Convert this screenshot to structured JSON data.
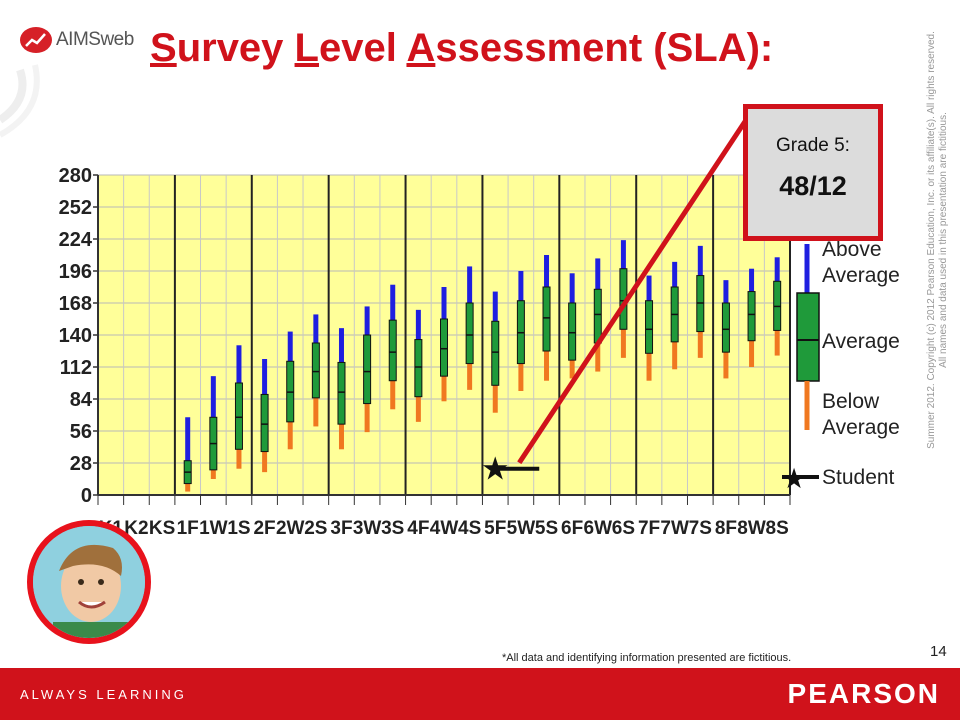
{
  "header": {
    "logo_text": "AIMSweb",
    "title_parts": [
      "S",
      "urvey ",
      "L",
      "evel ",
      "A",
      "ssessment (SLA):"
    ]
  },
  "callout": {
    "label": "Grade 5:",
    "value": "48/12"
  },
  "legend": {
    "above": "Above Average",
    "average": "Average",
    "below": "Below Average",
    "student": "Student"
  },
  "footer": {
    "note": "*All data and identifying information presented are fictitious.",
    "page_number": "14",
    "brand_left": "ALWAYS LEARNING",
    "brand_right": "PEARSON",
    "copyright_line1": "Summer 2012.  Copyright (c) 2012 Pearson Education, Inc. or its affiliate(s).  All rights reserved.",
    "copyright_line2": "All names and data used in this presentation  are fictitious."
  },
  "colors": {
    "accent": "#d0121b",
    "above": "#1f1fe0",
    "average": "#1f9a3a",
    "below": "#f07820",
    "plot_bg": "#ffff99"
  },
  "chart_data": {
    "type": "box",
    "categories": [
      "K1",
      "K2",
      "KS",
      "1F",
      "1W",
      "1S",
      "2F",
      "2W",
      "2S",
      "3F",
      "3W",
      "3S",
      "4F",
      "4W",
      "4S",
      "5F",
      "5W",
      "5S",
      "6F",
      "6W",
      "6S",
      "7F",
      "7W",
      "7S",
      "8F",
      "8W",
      "8S"
    ],
    "tick_labels": [
      "K1",
      "K2",
      "KS",
      "1F",
      "1W",
      "1S",
      "2F",
      "2W",
      "2S",
      "3F",
      "3W",
      "3S",
      "4F",
      "4W",
      "4S",
      "5F",
      "5W",
      "5S",
      "6F",
      "6W",
      "6S",
      "7F",
      "7W",
      "7S",
      "8F",
      "8W",
      "8S"
    ],
    "yticks": [
      0,
      28,
      56,
      84,
      112,
      140,
      168,
      196,
      224,
      252,
      280
    ],
    "ylim": [
      0,
      280
    ],
    "boxes": [
      null,
      null,
      null,
      {
        "low": 3,
        "q1": 10,
        "med": 20,
        "q3": 30,
        "high": 68
      },
      {
        "low": 14,
        "q1": 22,
        "med": 45,
        "q3": 68,
        "high": 104
      },
      {
        "low": 23,
        "q1": 40,
        "med": 68,
        "q3": 98,
        "high": 131
      },
      {
        "low": 20,
        "q1": 38,
        "med": 62,
        "q3": 88,
        "high": 119
      },
      {
        "low": 40,
        "q1": 64,
        "med": 90,
        "q3": 117,
        "high": 143
      },
      {
        "low": 60,
        "q1": 85,
        "med": 108,
        "q3": 133,
        "high": 158
      },
      {
        "low": 40,
        "q1": 62,
        "med": 90,
        "q3": 116,
        "high": 146
      },
      {
        "low": 55,
        "q1": 80,
        "med": 108,
        "q3": 140,
        "high": 165
      },
      {
        "low": 75,
        "q1": 100,
        "med": 125,
        "q3": 153,
        "high": 184
      },
      {
        "low": 64,
        "q1": 86,
        "med": 112,
        "q3": 136,
        "high": 162
      },
      {
        "low": 82,
        "q1": 104,
        "med": 128,
        "q3": 154,
        "high": 182
      },
      {
        "low": 92,
        "q1": 115,
        "med": 140,
        "q3": 168,
        "high": 200
      },
      {
        "low": 72,
        "q1": 96,
        "med": 125,
        "q3": 152,
        "high": 178
      },
      {
        "low": 91,
        "q1": 115,
        "med": 142,
        "q3": 170,
        "high": 196
      },
      {
        "low": 100,
        "q1": 126,
        "med": 155,
        "q3": 182,
        "high": 210
      },
      {
        "low": 102,
        "q1": 118,
        "med": 142,
        "q3": 168,
        "high": 194
      },
      {
        "low": 108,
        "q1": 133,
        "med": 158,
        "q3": 180,
        "high": 207
      },
      {
        "low": 120,
        "q1": 145,
        "med": 170,
        "q3": 198,
        "high": 223
      },
      {
        "low": 100,
        "q1": 124,
        "med": 145,
        "q3": 170,
        "high": 192
      },
      {
        "low": 110,
        "q1": 134,
        "med": 158,
        "q3": 182,
        "high": 204
      },
      {
        "low": 120,
        "q1": 143,
        "med": 168,
        "q3": 192,
        "high": 218
      },
      {
        "low": 102,
        "q1": 125,
        "med": 145,
        "q3": 168,
        "high": 188
      },
      {
        "low": 112,
        "q1": 135,
        "med": 158,
        "q3": 178,
        "high": 198
      },
      {
        "low": 122,
        "q1": 144,
        "med": 165,
        "q3": 187,
        "high": 208
      }
    ],
    "student": {
      "category": "5F",
      "value": 23
    },
    "grid": true
  }
}
